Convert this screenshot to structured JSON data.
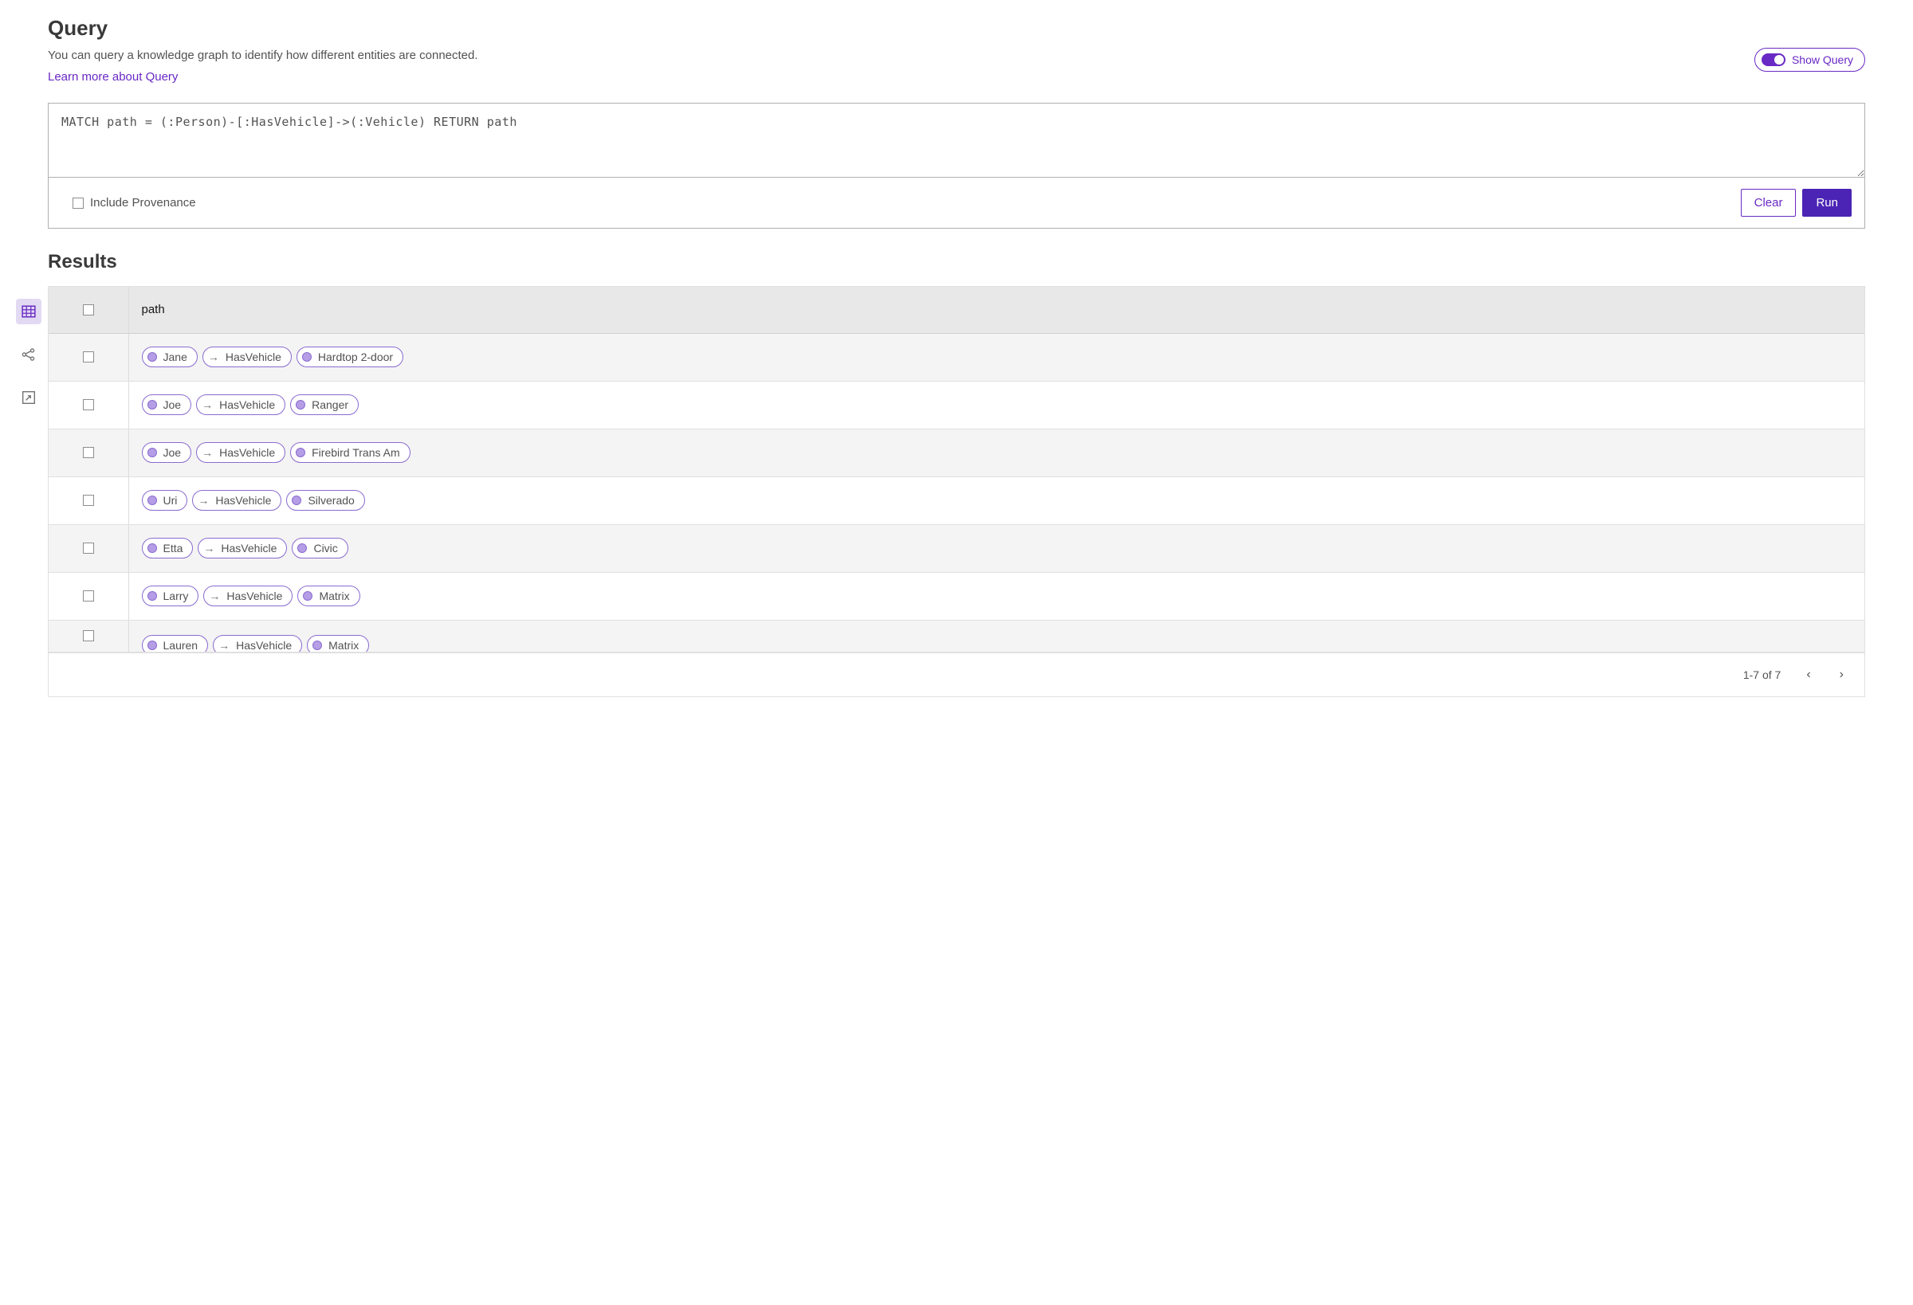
{
  "header": {
    "title": "Query",
    "description": "You can query a knowledge graph to identify how different entities are connected.",
    "learn_more": "Learn more about Query",
    "toggle_label": "Show Query"
  },
  "editor": {
    "query_text": "MATCH path = (:Person)-[:HasVehicle]->(:Vehicle) RETURN path",
    "include_provenance_label": "Include Provenance",
    "clear_label": "Clear",
    "run_label": "Run"
  },
  "results": {
    "title": "Results",
    "column_header": "path",
    "rows": [
      {
        "person": "Jane",
        "relation": "HasVehicle",
        "vehicle": "Hardtop 2-door"
      },
      {
        "person": "Joe",
        "relation": "HasVehicle",
        "vehicle": "Ranger"
      },
      {
        "person": "Joe",
        "relation": "HasVehicle",
        "vehicle": "Firebird Trans Am"
      },
      {
        "person": "Uri",
        "relation": "HasVehicle",
        "vehicle": "Silverado"
      },
      {
        "person": "Etta",
        "relation": "HasVehicle",
        "vehicle": "Civic"
      },
      {
        "person": "Larry",
        "relation": "HasVehicle",
        "vehicle": "Matrix"
      },
      {
        "person": "Lauren",
        "relation": "HasVehicle",
        "vehicle": "Matrix"
      }
    ],
    "pagination": "1-7 of 7"
  },
  "colors": {
    "accent": "#6929c4",
    "run_button": "#4b24b5",
    "pill_border": "#8a6bcf",
    "pill_dot": "#b59ee6",
    "row_alt_bg": "#f4f4f4",
    "header_bg": "#e8e8e8",
    "rail_active_bg": "#e2d9f3"
  }
}
